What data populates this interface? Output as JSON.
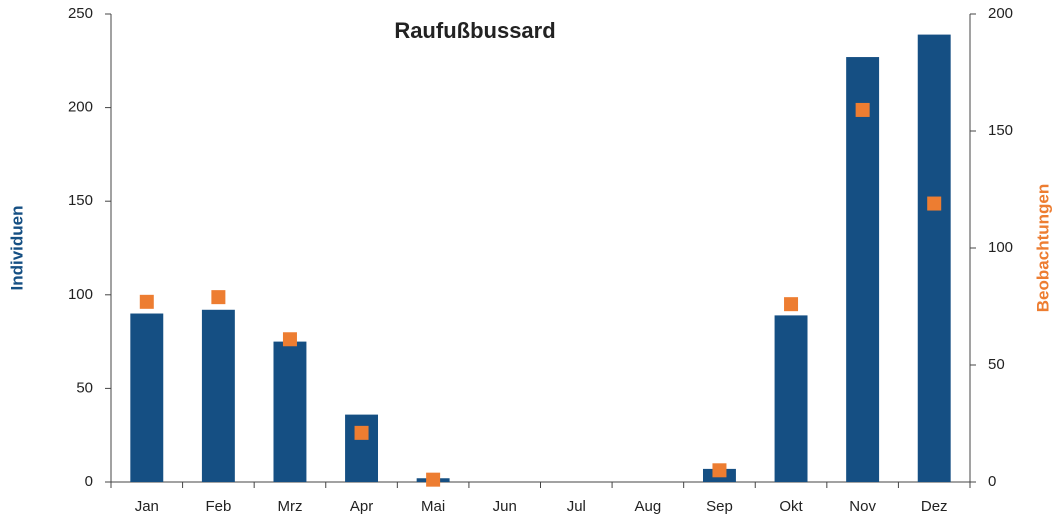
{
  "chart_data": {
    "type": "bar_scatter",
    "title": "Raufußbussard",
    "categories": [
      "Jan",
      "Feb",
      "Mrz",
      "Apr",
      "Mai",
      "Jun",
      "Jul",
      "Aug",
      "Sep",
      "Okt",
      "Nov",
      "Dez"
    ],
    "series": [
      {
        "name": "Individuen",
        "color": "#154f83",
        "type": "bar",
        "values": [
          90,
          92,
          75,
          36,
          2,
          0,
          0,
          0,
          7,
          89,
          227,
          239
        ]
      },
      {
        "name": "Beobachtungen",
        "color": "#ed7d31",
        "type": "scatter",
        "axis": "y2",
        "values": [
          77,
          79,
          61,
          21,
          1,
          null,
          null,
          null,
          5,
          76,
          159,
          119
        ]
      }
    ],
    "ylabel": "Individuen",
    "y2label": "Beobachtungen",
    "ylim": [
      0,
      250
    ],
    "yticks": [
      0,
      50,
      100,
      150,
      200,
      250
    ],
    "y2lim": [
      0,
      200
    ],
    "y2ticks": [
      0,
      50,
      100,
      150,
      200
    ]
  }
}
